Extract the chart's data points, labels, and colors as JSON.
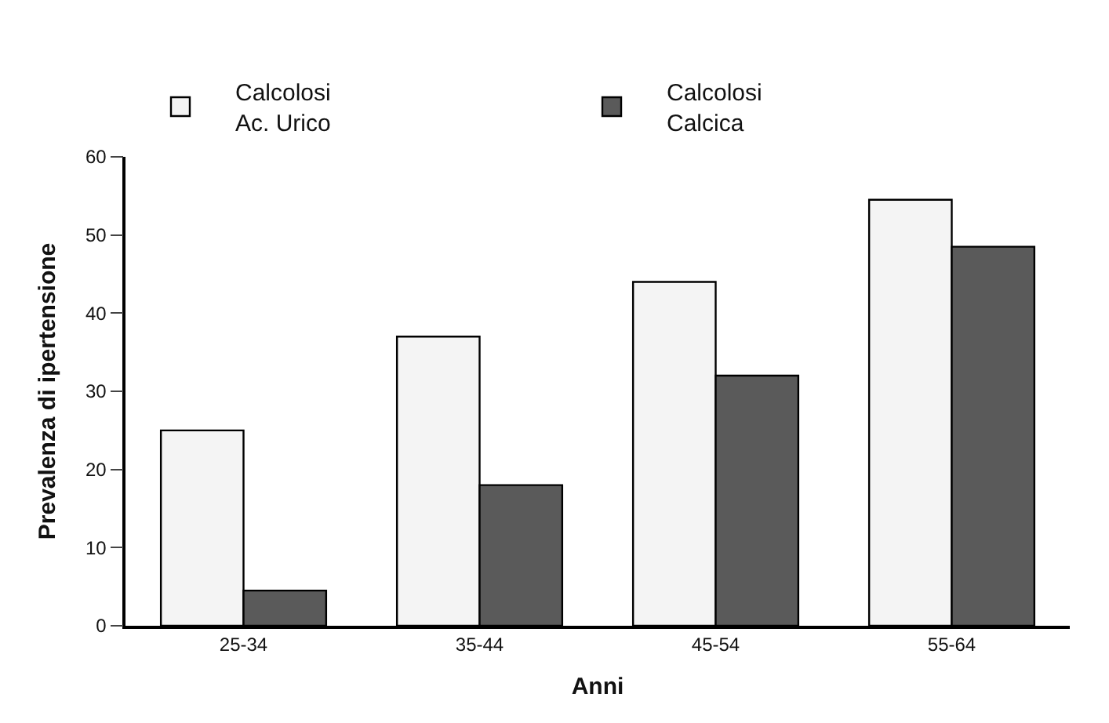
{
  "chart_data": {
    "type": "bar",
    "xlabel": "Anni",
    "ylabel": "Prevalenza di ipertensione",
    "categories": [
      "25-34",
      "35-44",
      "45-54",
      "55-64"
    ],
    "series": [
      {
        "name": "Calcolosi Ac. Urico",
        "color": "#f4f4f4",
        "values": [
          25,
          37,
          44,
          54.5
        ]
      },
      {
        "name": "Calcolosi Calcica",
        "color": "#5a5a5a",
        "values": [
          4.5,
          18,
          32,
          48.5
        ]
      }
    ],
    "ylim": [
      0,
      60
    ],
    "yticks": [
      0,
      10,
      20,
      30,
      40,
      50,
      60
    ],
    "legend": "top left"
  }
}
